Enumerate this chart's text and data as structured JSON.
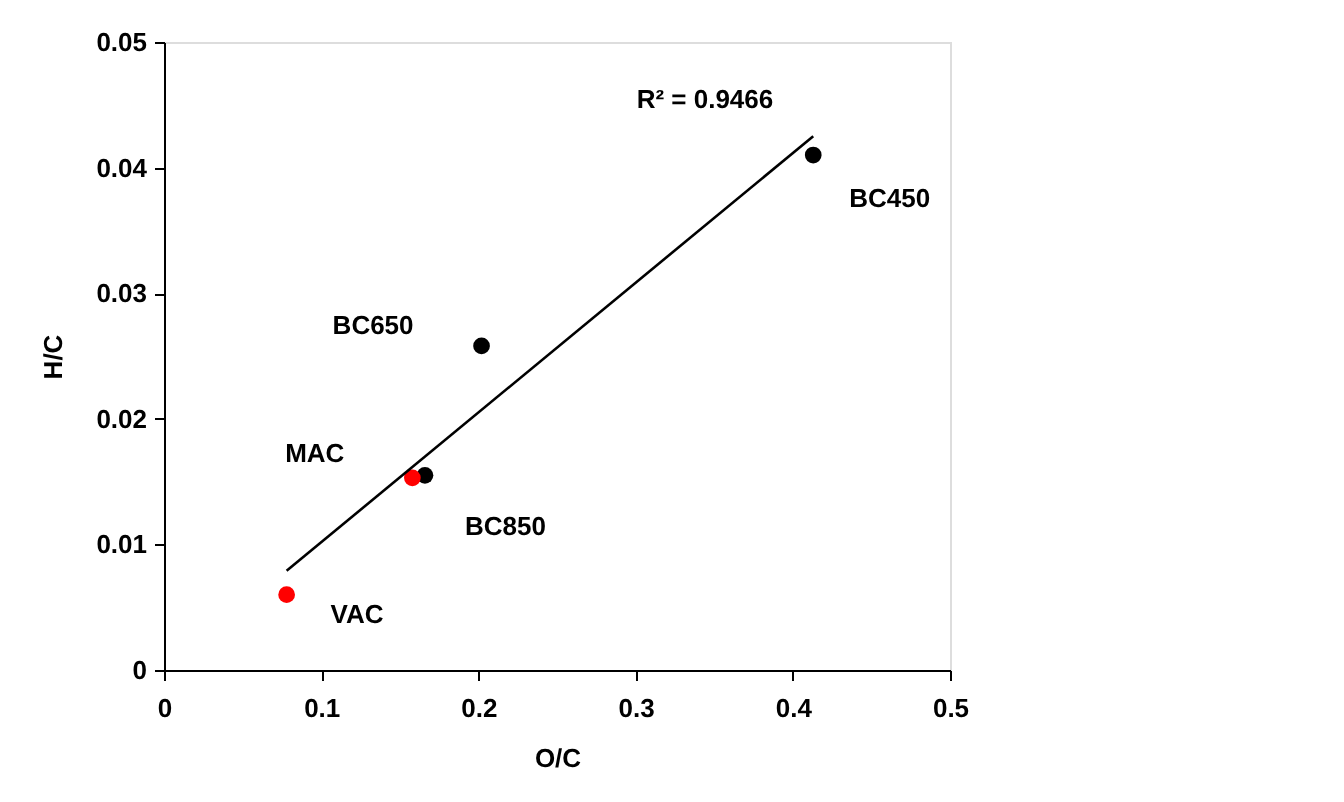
{
  "chart_data": {
    "type": "scatter",
    "xlabel": "O/C",
    "ylabel": "H/C",
    "xlim": [
      0,
      0.5
    ],
    "xticks": [
      0,
      0.1,
      0.2,
      0.3,
      0.4,
      0.5
    ],
    "ylim": [
      0,
      0.05
    ],
    "yticks": [
      0,
      0.01,
      0.02,
      0.03,
      0.04,
      0.05
    ],
    "grid": false,
    "series": [
      {
        "color": "#000000",
        "marker": "circle",
        "x": [
          0.413,
          0.202,
          0.166
        ],
        "values": [
          0.041,
          0.0258,
          0.0155
        ]
      },
      {
        "color": "#ff0000",
        "marker": "circle",
        "x": [
          0.158,
          0.078
        ],
        "values": [
          0.0153,
          0.006
        ]
      },
      {
        "type": "line",
        "marker": "none",
        "color": "#000000",
        "x": [
          0.078,
          0.413
        ],
        "values": [
          0.0079,
          0.0425
        ]
      }
    ],
    "annotations": [
      {
        "text": "BC450",
        "x": 0.413,
        "y": 0.041
      },
      {
        "text": "BC650",
        "x": 0.202,
        "y": 0.0258
      },
      {
        "text": "BC850",
        "x": 0.166,
        "y": 0.0155
      },
      {
        "text": "MAC",
        "x": 0.158,
        "y": 0.0153
      },
      {
        "text": "VAC",
        "x": 0.078,
        "y": 0.006
      },
      {
        "text": "R² = 0.9466",
        "x": 0.413,
        "y": 0.0425
      }
    ]
  }
}
